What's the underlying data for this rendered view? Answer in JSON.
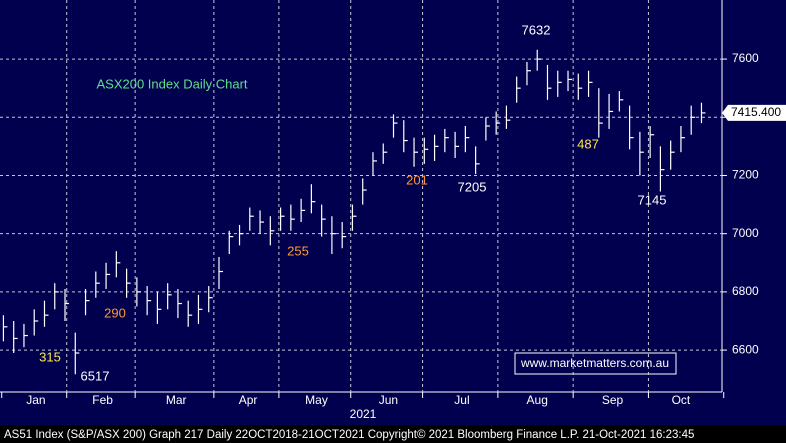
{
  "chart_data": {
    "type": "ohlc",
    "title": "ASX200 Index Daily Chart",
    "x": [
      0,
      3,
      6,
      9,
      12,
      15,
      18,
      21,
      24,
      27,
      30,
      33,
      36,
      39,
      42,
      45,
      48,
      51,
      54,
      57,
      60,
      63,
      66,
      69,
      72,
      75,
      78,
      81,
      84,
      87,
      90,
      93,
      96,
      99,
      102,
      105,
      108,
      111,
      114,
      117,
      120,
      123,
      126,
      129,
      132,
      135,
      138,
      141,
      144,
      147,
      150,
      153,
      156,
      159,
      162,
      165,
      168,
      171,
      174,
      177,
      180,
      183,
      186,
      189,
      192,
      195,
      198,
      201,
      204
    ],
    "close": [
      6680,
      6640,
      6650,
      6700,
      6720,
      6800,
      6760,
      6590,
      6770,
      6830,
      6860,
      6900,
      6830,
      6800,
      6770,
      6740,
      6790,
      6760,
      6720,
      6740,
      6780,
      6870,
      6990,
      7000,
      7060,
      7040,
      7010,
      7060,
      7050,
      7080,
      7110,
      7050,
      7000,
      6990,
      7060,
      7150,
      7250,
      7280,
      7380,
      7320,
      7280,
      7290,
      7300,
      7330,
      7300,
      7330,
      7240,
      7370,
      7380,
      7390,
      7500,
      7560,
      7600,
      7500,
      7520,
      7530,
      7500,
      7520,
      7380,
      7420,
      7460,
      7330,
      7280,
      7340,
      7220,
      7280,
      7330,
      7400,
      7415
    ],
    "high": [
      6720,
      6700,
      6690,
      6740,
      6770,
      6830,
      6810,
      6660,
      6810,
      6870,
      6900,
      6940,
      6880,
      6850,
      6820,
      6800,
      6830,
      6810,
      6770,
      6790,
      6820,
      6920,
      7010,
      7030,
      7090,
      7080,
      7060,
      7090,
      7100,
      7120,
      7170,
      7100,
      7060,
      7040,
      7100,
      7190,
      7280,
      7310,
      7410,
      7390,
      7330,
      7330,
      7340,
      7360,
      7350,
      7370,
      7300,
      7400,
      7420,
      7440,
      7540,
      7590,
      7632,
      7580,
      7560,
      7560,
      7550,
      7560,
      7500,
      7480,
      7490,
      7440,
      7350,
      7370,
      7300,
      7320,
      7370,
      7440,
      7450
    ],
    "low": [
      6630,
      6590,
      6610,
      6650,
      6680,
      6740,
      6700,
      6517,
      6720,
      6780,
      6810,
      6850,
      6780,
      6750,
      6720,
      6690,
      6740,
      6710,
      6680,
      6690,
      6730,
      6810,
      6930,
      6960,
      7010,
      7000,
      6960,
      7010,
      7010,
      7040,
      7070,
      6990,
      6930,
      6950,
      7010,
      7100,
      7200,
      7240,
      7330,
      7280,
      7230,
      7240,
      7250,
      7280,
      7260,
      7280,
      7205,
      7320,
      7340,
      7360,
      7450,
      7510,
      7560,
      7460,
      7470,
      7490,
      7460,
      7470,
      7330,
      7360,
      7420,
      7290,
      7200,
      7260,
      7145,
      7220,
      7280,
      7340,
      7380
    ],
    "xlim": [
      -1,
      210
    ],
    "ylim": [
      6456,
      7803
    ],
    "yticks": [
      6600,
      6800,
      7000,
      7200,
      7400,
      7600
    ],
    "months": [
      "Jan",
      "Feb",
      "Mar",
      "Apr",
      "May",
      "Jun",
      "Jul",
      "Aug",
      "Sep",
      "Oct"
    ],
    "month_starts": [
      0,
      19,
      39,
      62,
      81,
      102,
      123,
      145,
      167,
      189,
      211
    ],
    "year": "2021",
    "last_value_label": "7415.400",
    "annotations": [
      "315",
      "6517",
      "290",
      "255",
      "201",
      "7205",
      "7632",
      "487",
      "7145"
    ],
    "watermark": "www.marketmatters.com.au",
    "footer": "AS51 Index (S&P/ASX 200) Graph 217  Daily 22OCT2018-21OCT2021 Copyright© 2021 Bloomberg Finance L.P. 21-Oct-2021 16:23:45"
  }
}
